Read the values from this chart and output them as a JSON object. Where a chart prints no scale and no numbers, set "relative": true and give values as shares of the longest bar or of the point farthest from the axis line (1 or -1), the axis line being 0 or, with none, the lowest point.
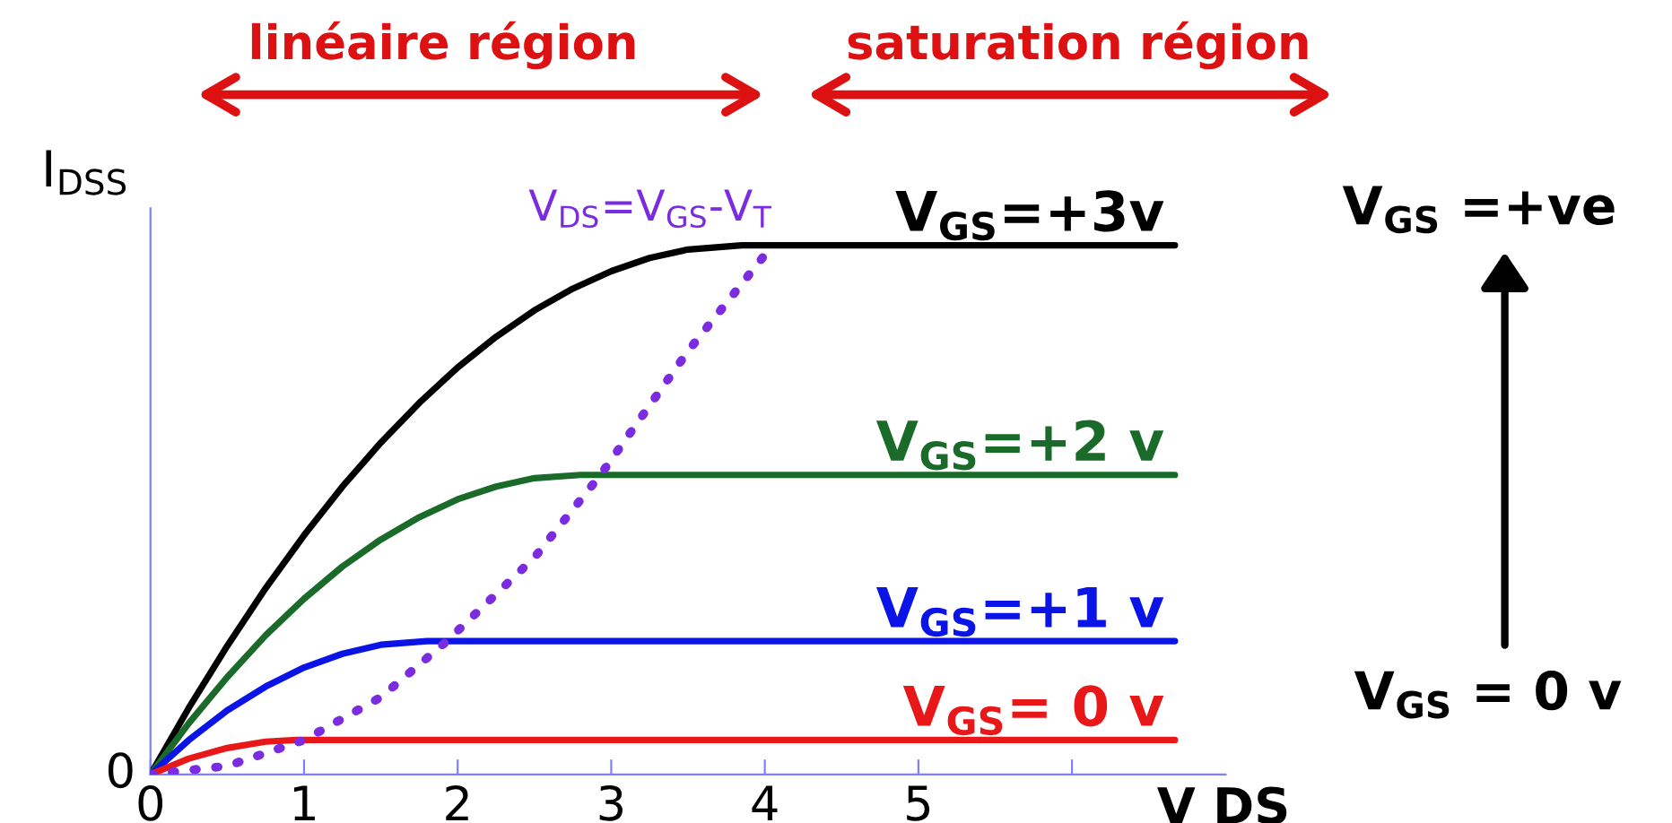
{
  "chart_data": {
    "type": "line",
    "relative": true,
    "xlabel": "V DS",
    "ylabel": "I$_{DSS}$",
    "xlim": [
      0,
      7
    ],
    "xticks": [
      0,
      1,
      2,
      3,
      4,
      5,
      {
        "value": 6,
        "label": null
      }
    ],
    "grid": false,
    "legend": false,
    "marker": "none",
    "line_style": "solid",
    "series": [
      {
        "name": "V$_{GS}$=+3v",
        "color": "#000000",
        "x": [
          0,
          0.25,
          0.5,
          0.75,
          1,
          1.25,
          1.5,
          1.75,
          2,
          2.25,
          2.5,
          2.75,
          3,
          3.25,
          3.5,
          3.85,
          6.67
        ],
        "values": [
          0,
          0.126,
          0.243,
          0.352,
          0.452,
          0.544,
          0.627,
          0.702,
          0.769,
          0.827,
          0.877,
          0.918,
          0.951,
          0.976,
          0.992,
          1,
          1
        ]
      },
      {
        "name": "V$_{GS}$=+2 v",
        "color": "#1a6b2a",
        "x": [
          0,
          0.25,
          0.5,
          0.75,
          1,
          1.25,
          1.5,
          1.75,
          2,
          2.25,
          2.5,
          2.8,
          6.67
        ],
        "values": [
          0,
          0.097,
          0.184,
          0.263,
          0.332,
          0.393,
          0.444,
          0.486,
          0.52,
          0.544,
          0.56,
          0.566,
          0.566
        ]
      },
      {
        "name": "V$_{GS}$=+1 v",
        "color": "#0a14e6",
        "x": [
          0,
          0.25,
          0.5,
          0.75,
          1,
          1.25,
          1.5,
          1.8,
          6.67
        ],
        "values": [
          0,
          0.065,
          0.121,
          0.166,
          0.202,
          0.228,
          0.245,
          0.252,
          0.252
        ]
      },
      {
        "name": "V$_{GS}$= 0 v",
        "color": "#e81818",
        "x": [
          0,
          0.25,
          0.5,
          0.75,
          0.95,
          6.67
        ],
        "values": [
          0,
          0.03,
          0.05,
          0.062,
          0.065,
          0.065
        ]
      },
      {
        "name": "V$_{DS}$=V$_{GS}$-V$_{T}$",
        "color": "#7b2be0",
        "line_style": "dotted",
        "x": [
          0,
          0.5,
          1,
          1.5,
          1.93,
          2.5,
          2.93,
          3.5,
          4.05
        ],
        "values": [
          0,
          0.016,
          0.065,
          0.146,
          0.252,
          0.41,
          0.566,
          0.8,
          1
        ]
      }
    ],
    "annotations": [
      {
        "text": "0",
        "x": 0,
        "y": 0
      },
      "linéaire région",
      "saturation région",
      "V$_{GS}$ =+ve",
      "V$_{GS}$ = 0 v"
    ]
  }
}
